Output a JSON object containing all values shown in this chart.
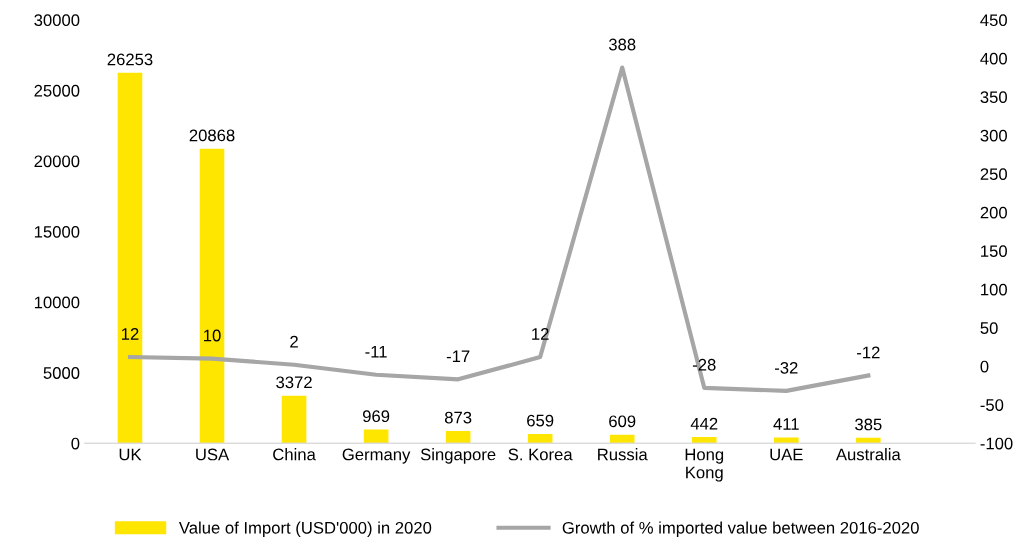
{
  "chart_data": {
    "type": "bar",
    "categories": [
      "UK",
      "USA",
      "China",
      "Germany",
      "Singapore",
      "S. Korea",
      "Russia",
      "Hong Kong",
      "UAE",
      "Australia"
    ],
    "series": [
      {
        "name": "Value of Import (USD'000) in 2020",
        "color": "#ffe600",
        "values": [
          26253,
          20868,
          3372,
          969,
          873,
          659,
          609,
          442,
          411,
          385
        ]
      },
      {
        "name": "Growth of % imported value between 2016-2020",
        "type": "line",
        "axis": "y2",
        "color": "#a6a6a6",
        "values": [
          12,
          10,
          2,
          -11,
          -17,
          12,
          388,
          -28,
          -32,
          -12
        ]
      }
    ],
    "ylim": [
      0,
      30000
    ],
    "yticks": [
      0,
      5000,
      10000,
      15000,
      20000,
      25000,
      30000
    ],
    "y2lim": [
      -100,
      450
    ],
    "y2ticks": [
      -100,
      -50,
      0,
      50,
      100,
      150,
      200,
      250,
      300,
      350,
      400,
      450
    ],
    "data_labels": true,
    "legend": "bottom",
    "grid": false,
    "marker": "none",
    "line_style": "solid"
  }
}
